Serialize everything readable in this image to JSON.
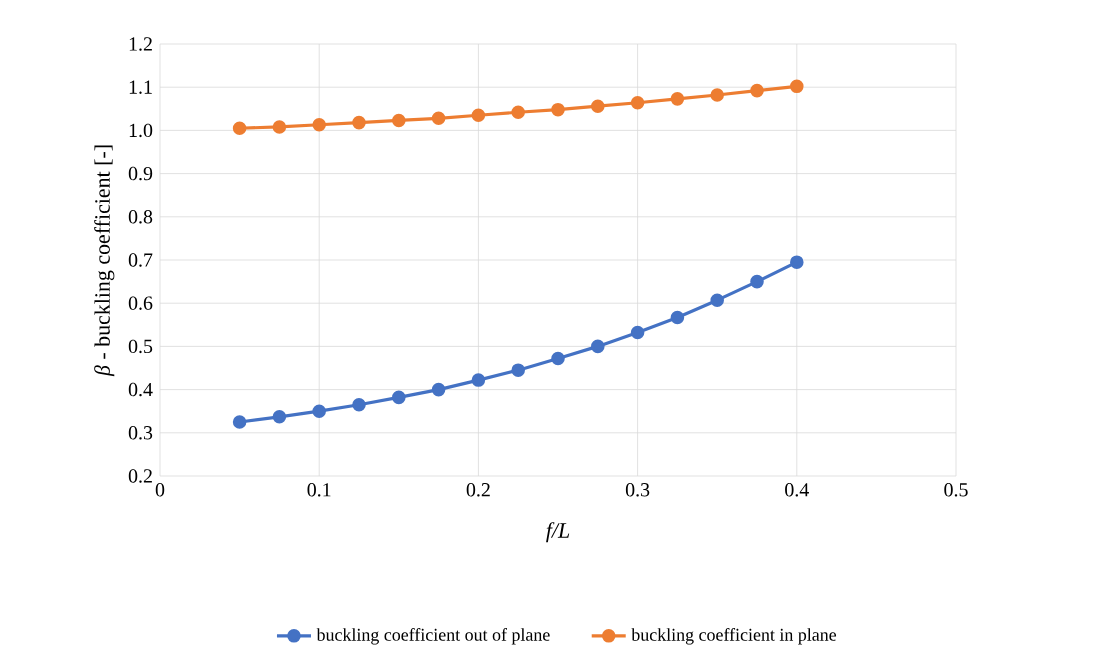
{
  "chart_data": {
    "type": "line",
    "xlabel": "f/L",
    "ylabel": "*β* - buckling coefficient [-]",
    "x": [
      0.05,
      0.075,
      0.1,
      0.125,
      0.15,
      0.175,
      0.2,
      0.225,
      0.25,
      0.275,
      0.3,
      0.325,
      0.35,
      0.375,
      0.4
    ],
    "series": [
      {
        "name": "buckling coefficient out of plane",
        "color": "#4472c4",
        "values": [
          0.325,
          0.337,
          0.35,
          0.365,
          0.382,
          0.4,
          0.422,
          0.445,
          0.472,
          0.5,
          0.532,
          0.567,
          0.607,
          0.65,
          0.695
        ]
      },
      {
        "name": "buckling coefficient in plane",
        "color": "#ed7d31",
        "values": [
          1.005,
          1.008,
          1.013,
          1.018,
          1.023,
          1.028,
          1.035,
          1.042,
          1.048,
          1.056,
          1.064,
          1.073,
          1.082,
          1.092,
          1.102
        ]
      }
    ],
    "xlim": [
      0,
      0.5
    ],
    "xticks": [
      0,
      0.1,
      0.2,
      0.3,
      0.4,
      0.5
    ],
    "ylim": [
      0.2,
      1.2
    ],
    "yticks": [
      0.2,
      0.3,
      0.4,
      0.5,
      0.6,
      0.7,
      0.8,
      0.9,
      {
        "value": 1,
        "label": "1.0"
      },
      1.1,
      1.2
    ],
    "grid": true,
    "legend": "bottom",
    "marker": "circle",
    "line_style": "solid"
  }
}
